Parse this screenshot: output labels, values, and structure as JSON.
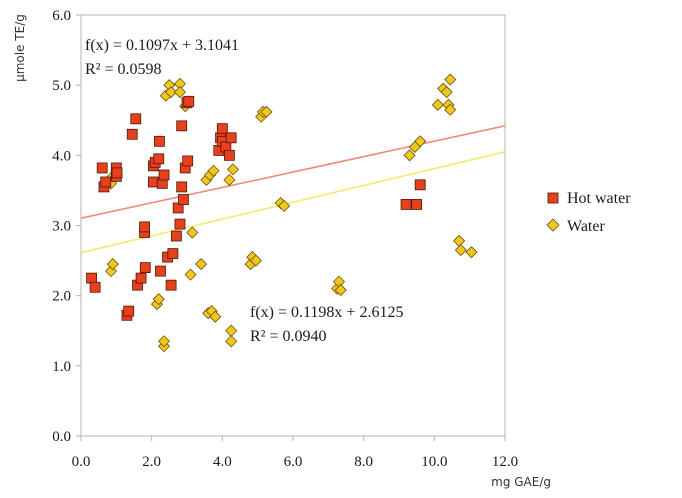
{
  "chart_data": {
    "type": "scatter",
    "title": "",
    "xlabel": "mg GAE/g",
    "ylabel": "μmole TE/g",
    "xlim": [
      0,
      12
    ],
    "ylim": [
      0,
      6
    ],
    "x_ticks": [
      "0.0",
      "2.0",
      "4.0",
      "6.0",
      "8.0",
      "10.0",
      "12.0"
    ],
    "y_ticks": [
      "0.0",
      "1.0",
      "2.0",
      "3.0",
      "4.0",
      "5.0",
      "6.0"
    ],
    "grid": false,
    "legend_position": "right",
    "series": [
      {
        "name": "Hot water",
        "marker": "square",
        "color": "#e8401c",
        "trendline_color": "#f28a7a",
        "trendline": {
          "slope": 0.1097,
          "intercept": 3.1041
        },
        "equation": "f(x) = 0.1097x + 3.1041",
        "r_squared": "R² = 0.0598",
        "points": [
          [
            0.3,
            2.25
          ],
          [
            0.4,
            2.12
          ],
          [
            0.6,
            3.82
          ],
          [
            0.65,
            3.55
          ],
          [
            0.7,
            3.62
          ],
          [
            1.0,
            3.82
          ],
          [
            1.0,
            3.7
          ],
          [
            1.02,
            3.75
          ],
          [
            1.3,
            1.72
          ],
          [
            1.35,
            1.78
          ],
          [
            1.45,
            4.3
          ],
          [
            1.55,
            4.52
          ],
          [
            1.6,
            2.15
          ],
          [
            1.7,
            2.25
          ],
          [
            1.8,
            2.9
          ],
          [
            1.8,
            2.98
          ],
          [
            1.82,
            2.4
          ],
          [
            2.05,
            3.62
          ],
          [
            2.05,
            3.85
          ],
          [
            2.1,
            3.9
          ],
          [
            2.2,
            3.95
          ],
          [
            2.22,
            4.2
          ],
          [
            2.25,
            2.35
          ],
          [
            2.3,
            3.6
          ],
          [
            2.35,
            3.72
          ],
          [
            2.45,
            2.55
          ],
          [
            2.55,
            2.15
          ],
          [
            2.6,
            2.6
          ],
          [
            2.7,
            2.85
          ],
          [
            2.75,
            3.25
          ],
          [
            2.8,
            3.02
          ],
          [
            2.85,
            4.42
          ],
          [
            2.85,
            3.55
          ],
          [
            2.9,
            3.37
          ],
          [
            2.95,
            3.82
          ],
          [
            3.0,
            4.75
          ],
          [
            3.02,
            3.92
          ],
          [
            3.05,
            4.77
          ],
          [
            3.9,
            4.07
          ],
          [
            3.95,
            4.25
          ],
          [
            4.0,
            4.2
          ],
          [
            4.0,
            4.38
          ],
          [
            4.1,
            4.12
          ],
          [
            4.2,
            4.0
          ],
          [
            4.25,
            4.25
          ],
          [
            9.2,
            3.3
          ],
          [
            9.5,
            3.3
          ],
          [
            9.6,
            3.58
          ]
        ]
      },
      {
        "name": "Water",
        "marker": "diamond",
        "color": "#f0c81c",
        "trendline_color": "#f5ea6a",
        "trendline": {
          "slope": 0.1198,
          "intercept": 2.6125
        },
        "equation": "f(x) = 0.1198x + 2.6125",
        "r_squared": "R² = 0.0940",
        "points": [
          [
            0.85,
            2.35
          ],
          [
            0.9,
            2.45
          ],
          [
            0.85,
            3.6
          ],
          [
            0.9,
            3.7
          ],
          [
            2.15,
            1.88
          ],
          [
            2.2,
            1.95
          ],
          [
            2.35,
            1.28
          ],
          [
            2.35,
            1.35
          ],
          [
            2.4,
            4.85
          ],
          [
            2.5,
            5.0
          ],
          [
            2.55,
            4.9
          ],
          [
            2.8,
            5.02
          ],
          [
            2.8,
            4.9
          ],
          [
            2.95,
            4.7
          ],
          [
            3.1,
            2.3
          ],
          [
            3.15,
            2.9
          ],
          [
            3.4,
            2.45
          ],
          [
            3.55,
            3.65
          ],
          [
            3.65,
            3.72
          ],
          [
            3.75,
            3.78
          ],
          [
            3.6,
            1.75
          ],
          [
            3.7,
            1.78
          ],
          [
            3.8,
            1.7
          ],
          [
            4.2,
            3.65
          ],
          [
            4.3,
            3.8
          ],
          [
            4.25,
            1.5
          ],
          [
            4.25,
            1.35
          ],
          [
            4.8,
            2.45
          ],
          [
            4.85,
            2.55
          ],
          [
            4.95,
            2.5
          ],
          [
            5.1,
            4.55
          ],
          [
            5.15,
            4.62
          ],
          [
            5.25,
            4.62
          ],
          [
            5.65,
            3.32
          ],
          [
            5.75,
            3.28
          ],
          [
            7.25,
            2.1
          ],
          [
            7.3,
            2.2
          ],
          [
            7.35,
            2.08
          ],
          [
            9.3,
            4.0
          ],
          [
            9.45,
            4.12
          ],
          [
            9.6,
            4.2
          ],
          [
            10.1,
            4.72
          ],
          [
            10.25,
            4.95
          ],
          [
            10.35,
            4.9
          ],
          [
            10.45,
            5.08
          ],
          [
            10.4,
            4.72
          ],
          [
            10.45,
            4.65
          ],
          [
            10.7,
            2.78
          ],
          [
            10.75,
            2.65
          ],
          [
            11.05,
            2.62
          ]
        ]
      }
    ]
  }
}
